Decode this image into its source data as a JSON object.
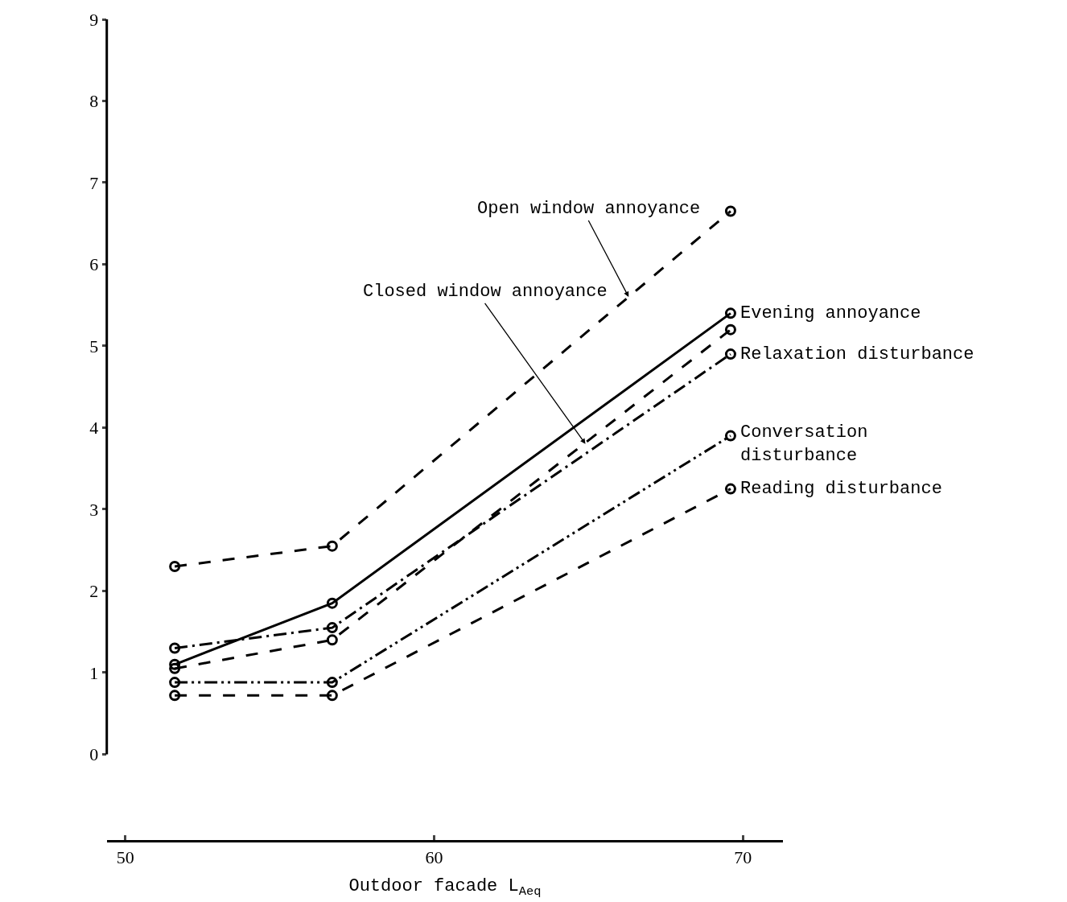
{
  "chart_data": {
    "type": "line",
    "xlabel": "Outdoor facade L$_{Aeq}$",
    "x": [
      51.6,
      56.7,
      69.6
    ],
    "xlim": [
      49.4,
      71.3
    ],
    "xticks": [
      50,
      60,
      70
    ],
    "ylim": [
      -1.05,
      9
    ],
    "yticks": [
      0,
      1,
      2,
      3,
      4,
      5,
      6,
      7,
      8,
      9
    ],
    "legend": false,
    "marker": "circle",
    "series": [
      {
        "color": "#000000",
        "line_style": "dashed",
        "values": [
          2.3,
          2.55,
          6.65
        ]
      },
      {
        "name": "Evening annoyance",
        "color": "#000000",
        "line_style": "solid",
        "values": [
          1.1,
          1.85,
          5.4
        ]
      },
      {
        "color": "#000000",
        "line_style": "dashed",
        "values": [
          1.05,
          1.4,
          5.2
        ]
      },
      {
        "name": "Relaxation disturbance",
        "color": "#000000",
        "line_style": "dashdot",
        "values": [
          1.3,
          1.55,
          4.9
        ]
      },
      {
        "name": "Conversation disturbance",
        "color": "#000000",
        "line_style": "dashdotdot",
        "values": [
          0.88,
          0.88,
          3.9
        ]
      },
      {
        "name": "Reading disturbance",
        "color": "#000000",
        "line_style": "dashed",
        "values": [
          0.72,
          0.72,
          3.25
        ]
      }
    ],
    "annotations": [
      {
        "text": "Open window annoyance",
        "x": 66.3,
        "y": 5.6
      },
      {
        "text": "Closed window annoyance",
        "x": 64.9,
        "y": 3.8
      }
    ]
  }
}
